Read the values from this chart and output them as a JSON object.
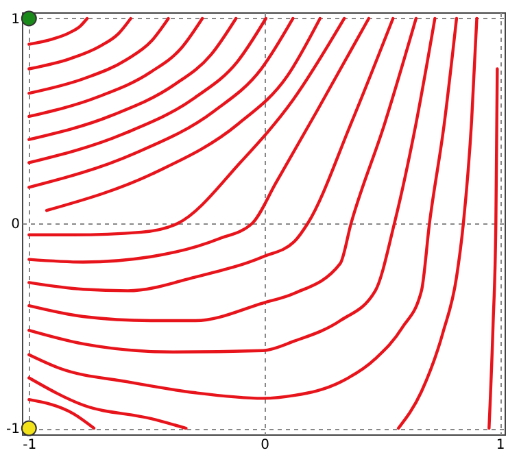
{
  "chart_data": {
    "type": "line",
    "xlim": [
      -1.03,
      1.02
    ],
    "ylim": [
      -1.03,
      1.03
    ],
    "xticks": [
      -1,
      0,
      1
    ],
    "yticks": [
      -1,
      0,
      1
    ],
    "grid": true,
    "line_style": "solid",
    "marker": "none",
    "series": [
      {
        "color": "#e8141c",
        "x": [
          -1,
          -0.901,
          -0.827,
          -0.783,
          -0.753
        ],
        "values": [
          0.874,
          0.899,
          0.931,
          0.962,
          1
        ]
      },
      {
        "color": "#e8141c",
        "x": [
          -1,
          -0.827,
          -0.698,
          -0.62,
          -0.568
        ],
        "values": [
          0.754,
          0.803,
          0.865,
          0.926,
          1
        ]
      },
      {
        "color": "#e8141c",
        "x": [
          -1,
          -0.763,
          -0.586,
          -0.479,
          -0.408
        ],
        "values": [
          0.635,
          0.708,
          0.799,
          0.891,
          1
        ]
      },
      {
        "color": "#e8141c",
        "x": [
          -1,
          -0.706,
          -0.485,
          -0.352,
          -0.264
        ],
        "values": [
          0.522,
          0.618,
          0.737,
          0.857,
          1
        ]
      },
      {
        "color": "#e8141c",
        "x": [
          -1,
          -0.648,
          -0.385,
          -0.227,
          -0.121
        ],
        "values": [
          0.409,
          0.527,
          0.675,
          0.823,
          1
        ]
      },
      {
        "color": "#e8141c",
        "x": [
          -1,
          -0.598,
          -0.296,
          -0.115,
          0.006
        ],
        "values": [
          0.296,
          0.437,
          0.613,
          0.789,
          1
        ]
      },
      {
        "color": "#e8141c",
        "x": [
          -1,
          -0.552,
          -0.215,
          -0.014,
          0.121
        ],
        "values": [
          0.176,
          0.341,
          0.547,
          0.753,
          1
        ]
      },
      {
        "color": "#e8141c",
        "x": [
          -0.925,
          -0.461,
          -0.112,
          0.097,
          0.236
        ],
        "values": [
          0.063,
          0.25,
          0.485,
          0.719,
          1
        ]
      },
      {
        "color": "#e8141c",
        "x": [
          -1,
          -0.81,
          -0.523,
          -0.368,
          -0.1,
          0.12,
          0.339
        ],
        "values": [
          -0.056,
          -0.056,
          -0.043,
          0,
          0.3,
          0.6,
          1
        ]
      },
      {
        "color": "#e8141c",
        "x": [
          -1,
          -0.77,
          -0.483,
          -0.195,
          -0.052,
          0.05,
          0.224,
          0.443
        ],
        "values": [
          -0.176,
          -0.189,
          -0.163,
          -0.076,
          0,
          0.2,
          0.55,
          1
        ]
      },
      {
        "color": "#e8141c",
        "x": [
          -1,
          -0.77,
          -0.58,
          -0.293,
          -0.006,
          0.126,
          0.184,
          0.368,
          0.546
        ],
        "values": [
          -0.289,
          -0.322,
          -0.329,
          -0.262,
          -0.163,
          -0.09,
          0,
          0.488,
          1
        ]
      },
      {
        "color": "#e8141c",
        "x": [
          -1,
          -0.77,
          -0.483,
          -0.293,
          -0.006,
          0.126,
          0.322,
          0.368,
          0.511,
          0.644
        ],
        "values": [
          -0.402,
          -0.455,
          -0.475,
          -0.475,
          -0.389,
          -0.342,
          -0.196,
          0,
          0.488,
          1
        ]
      },
      {
        "color": "#e8141c",
        "x": [
          -1,
          -0.77,
          -0.391,
          -0.006,
          0.126,
          0.322,
          0.471,
          0.552,
          0.644,
          0.724
        ],
        "values": [
          -0.522,
          -0.588,
          -0.628,
          -0.621,
          -0.575,
          -0.475,
          -0.329,
          0,
          0.488,
          1
        ]
      },
      {
        "color": "#e8141c",
        "x": [
          -1,
          -0.868,
          -0.58,
          -0.293,
          -0.006,
          0.126,
          0.322,
          0.471,
          0.586,
          0.667,
          0.701,
          0.764,
          0.816
        ],
        "values": [
          -0.641,
          -0.708,
          -0.774,
          -0.827,
          -0.854,
          -0.84,
          -0.775,
          -0.661,
          -0.508,
          -0.329,
          0,
          0.488,
          1
        ]
      },
      {
        "color": "#e8141c",
        "x": [
          -1,
          -0.77,
          -0.483,
          -0.333
        ],
        "values": [
          -0.754,
          -0.887,
          -0.953,
          -1
        ]
      },
      {
        "color": "#e8141c",
        "x": [
          -1,
          -0.81,
          -0.724
        ],
        "values": [
          -0.86,
          -0.93,
          -1
        ]
      },
      {
        "color": "#e8141c",
        "x": [
          0.569,
          0.667,
          0.759,
          0.816,
          0.845,
          0.88,
          0.902
        ],
        "values": [
          -1,
          -0.821,
          -0.53,
          -0.262,
          0,
          0.5,
          1
        ]
      },
      {
        "color": "#e8141c",
        "x": [
          0.954,
          0.971,
          0.983,
          0.989
        ],
        "values": [
          -1,
          -0.5,
          0,
          0.754
        ]
      },
      {
        "type": "scatter",
        "marker": "circle",
        "color": "#1a8a1a",
        "x": [
          -1
        ],
        "values": [
          1
        ]
      },
      {
        "type": "scatter",
        "marker": "circle",
        "color": "#f2e21a",
        "x": [
          -1
        ],
        "values": [
          -1
        ]
      }
    ]
  }
}
